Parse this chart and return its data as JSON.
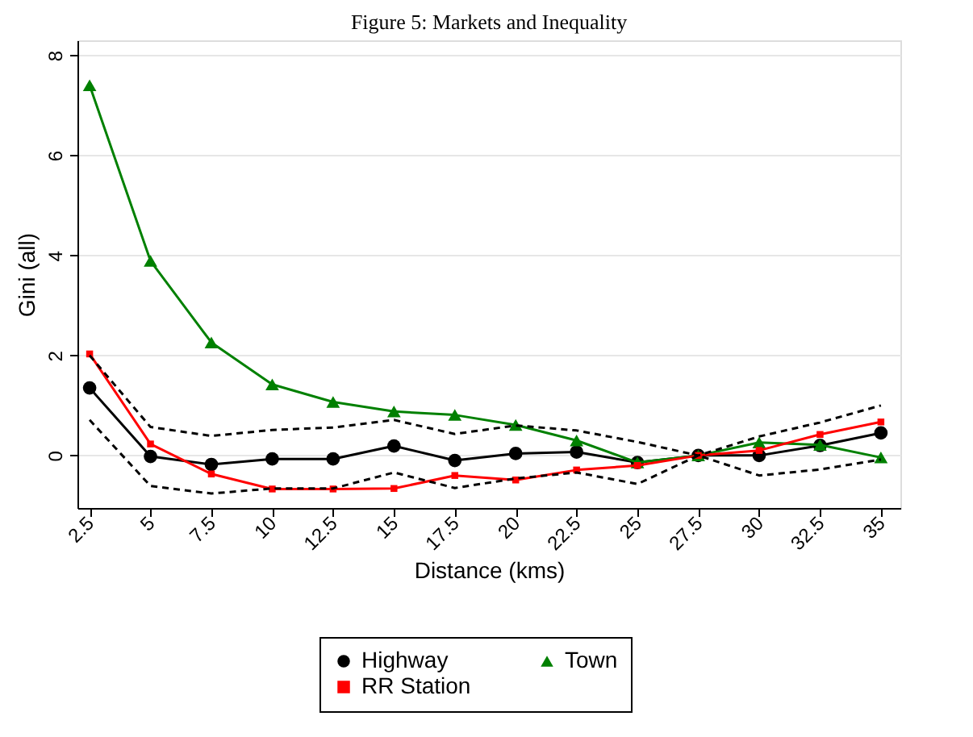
{
  "chart_data": {
    "type": "line",
    "title": "Figure 5: Markets and Inequality",
    "xlabel": "Distance (kms)",
    "ylabel": "Gini (all)",
    "x": [
      2.5,
      5,
      7.5,
      10,
      12.5,
      15,
      17.5,
      20,
      22.5,
      25,
      27.5,
      30,
      32.5,
      35
    ],
    "series": [
      {
        "name": "Highway",
        "color": "#000000",
        "marker": "circle",
        "line_style": "solid",
        "values": [
          1.35,
          -0.02,
          -0.18,
          -0.07,
          -0.07,
          0.19,
          -0.1,
          0.04,
          0.07,
          -0.14,
          0,
          0,
          0.2,
          0.45
        ]
      },
      {
        "name": "Town",
        "color": "#008000",
        "marker": "triangle",
        "line_style": "solid",
        "values": [
          7.4,
          3.89,
          2.26,
          1.42,
          1.07,
          0.88,
          0.81,
          0.61,
          0.3,
          -0.14,
          0,
          0.26,
          0.21,
          -0.04
        ]
      },
      {
        "name": "RR Station",
        "color": "#ff0000",
        "marker": "square",
        "line_style": "solid",
        "values": [
          2.03,
          0.23,
          -0.37,
          -0.67,
          -0.67,
          -0.66,
          -0.4,
          -0.49,
          -0.29,
          -0.2,
          0,
          0.1,
          0.42,
          0.67
        ]
      },
      {
        "color": "#000000",
        "marker": "none",
        "line_style": "dashed",
        "values": [
          2.0,
          0.57,
          0.39,
          0.51,
          0.56,
          0.71,
          0.43,
          0.6,
          0.5,
          0.27,
          0,
          0.38,
          0.66,
          1.0
        ]
      },
      {
        "color": "#000000",
        "marker": "none",
        "line_style": "dashed",
        "values": [
          0.71,
          -0.61,
          -0.76,
          -0.66,
          -0.66,
          -0.34,
          -0.65,
          -0.46,
          -0.34,
          -0.57,
          0,
          -0.4,
          -0.28,
          -0.08
        ]
      }
    ],
    "xlim": [
      2,
      35.8
    ],
    "xticks": [
      2.5,
      5,
      7.5,
      10,
      12.5,
      15,
      17.5,
      20,
      22.5,
      25,
      27.5,
      30,
      32.5,
      35
    ],
    "ylim": [
      -1.05,
      8.3
    ],
    "yticks": [
      0,
      2,
      4,
      6,
      8
    ],
    "grid": "y",
    "legend": "bottom"
  }
}
